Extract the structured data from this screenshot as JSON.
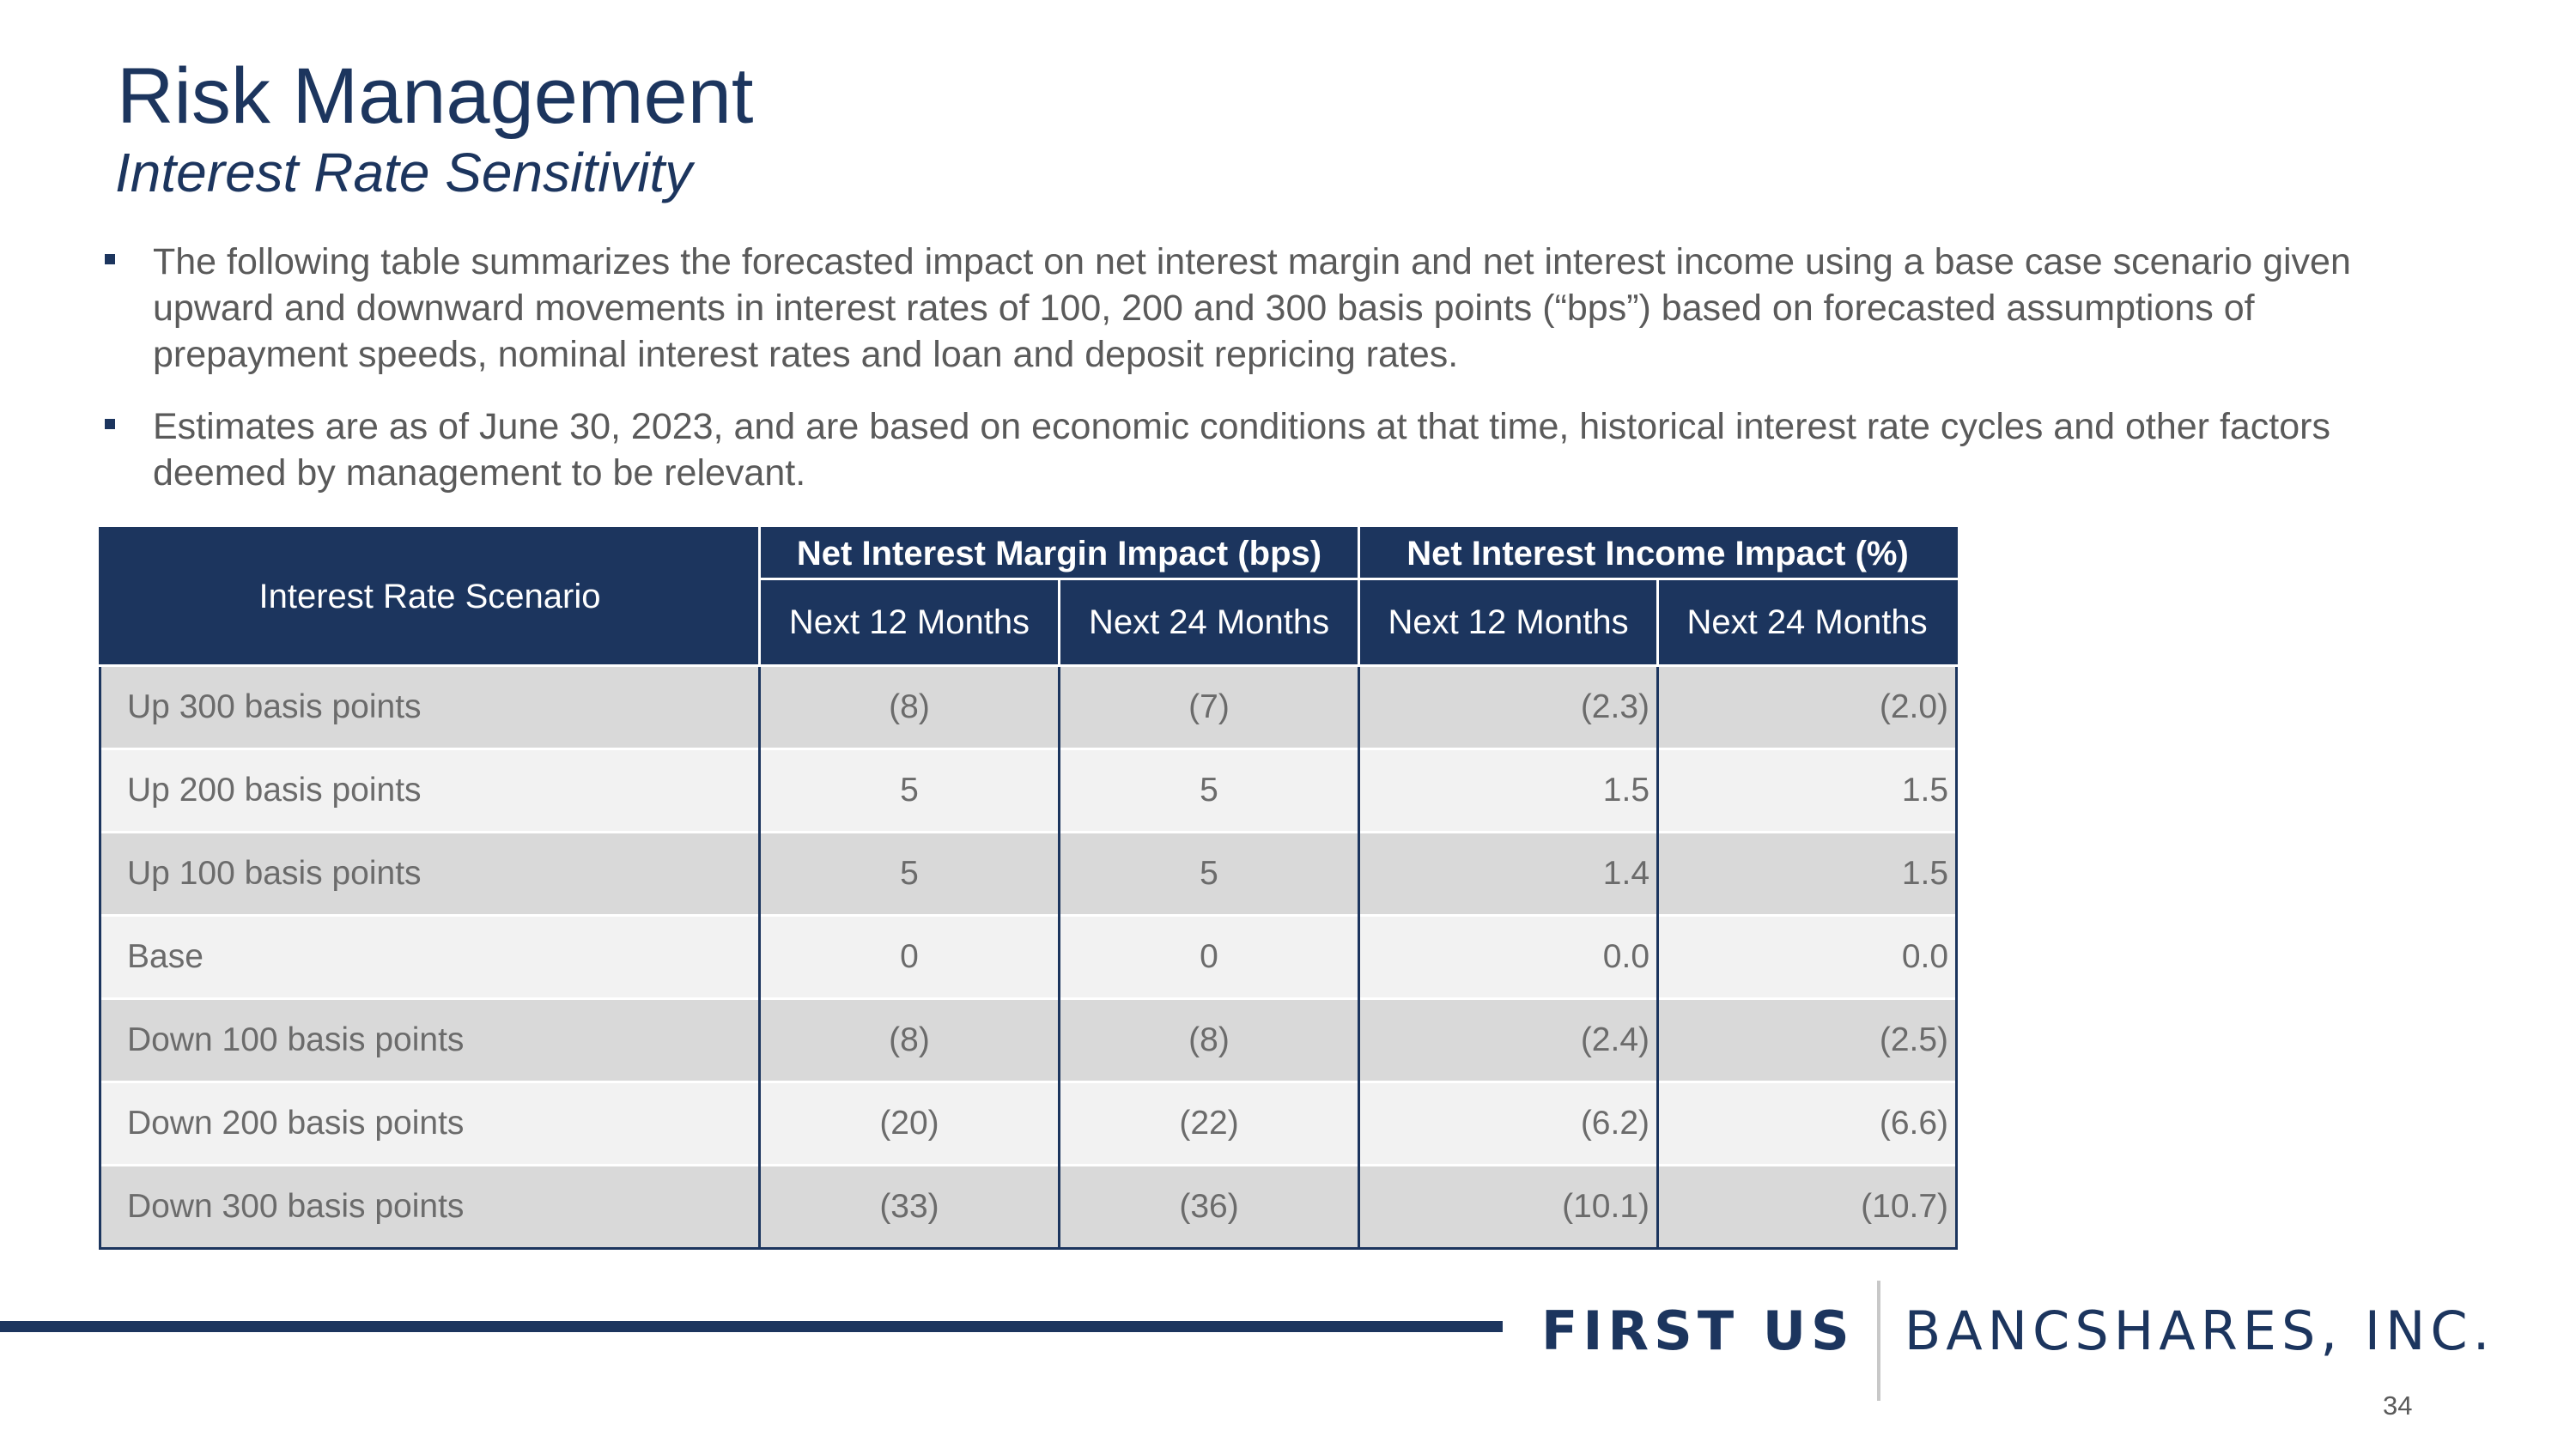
{
  "slide": {
    "title": "Risk Management",
    "subtitle": "Interest Rate Sensitivity",
    "page_number": "34"
  },
  "bullets": [
    "The following table summarizes the forecasted impact on net interest margin and net interest income using a base case scenario given upward and downward movements in interest rates of 100, 200 and 300 basis points (“bps”) based on forecasted assumptions of prepayment speeds, nominal interest rates and loan and deposit repricing rates.",
    "Estimates are as of June 30, 2023, and are based on economic conditions at that time, historical interest rate cycles and other factors deemed by management to be relevant."
  ],
  "table": {
    "scenario_header": "Interest Rate Scenario",
    "group_headers": [
      "Net Interest Margin Impact (bps)",
      "Net Interest Income Impact (%)"
    ],
    "sub_headers": [
      "Next 12 Months",
      "Next 24 Months",
      "Next 12 Months",
      "Next 24 Months"
    ],
    "rows": [
      {
        "scenario": "Up 300 basis points",
        "nim12": "(8)",
        "nim24": "(7)",
        "nii12": "(2.3)",
        "nii24": "(2.0)"
      },
      {
        "scenario": "Up 200 basis points",
        "nim12": "5",
        "nim24": "5",
        "nii12": "1.5",
        "nii24": "1.5"
      },
      {
        "scenario": "Up 100 basis points",
        "nim12": "5",
        "nim24": "5",
        "nii12": "1.4",
        "nii24": "1.5"
      },
      {
        "scenario": "Base",
        "nim12": "0",
        "nim24": "0",
        "nii12": "0.0",
        "nii24": "0.0"
      },
      {
        "scenario": "Down 100 basis points",
        "nim12": "(8)",
        "nim24": "(8)",
        "nii12": "(2.4)",
        "nii24": "(2.5)"
      },
      {
        "scenario": "Down 200 basis points",
        "nim12": "(20)",
        "nim24": "(22)",
        "nii12": "(6.2)",
        "nii24": "(6.6)"
      },
      {
        "scenario": "Down 300 basis points",
        "nim12": "(33)",
        "nim24": "(36)",
        "nii12": "(10.1)",
        "nii24": "(10.7)"
      }
    ]
  },
  "logo": {
    "bold_text": "FIRST US",
    "light_text": "BANCSHARES, INC."
  },
  "colors": {
    "brand_navy": "#1c355e",
    "row_shade_dark": "#d9d9d9",
    "row_shade_light": "#f2f2f2",
    "body_text": "#5a5a5a"
  }
}
